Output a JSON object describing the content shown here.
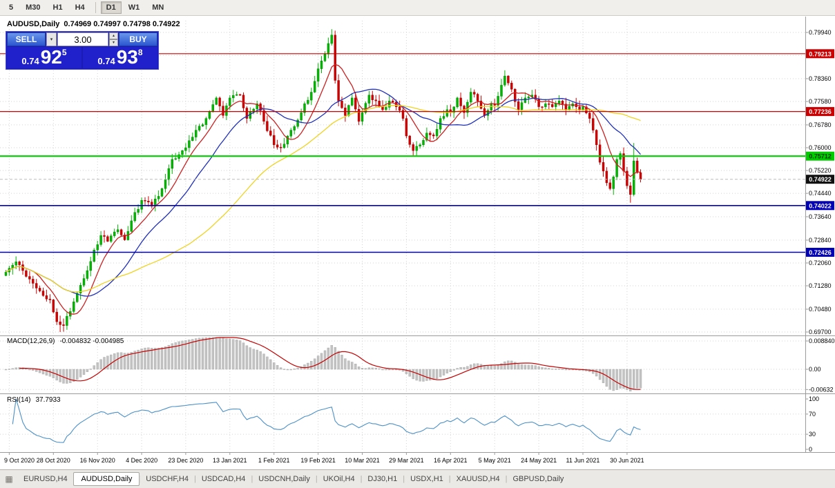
{
  "toolbar": {
    "timeframes": [
      "5",
      "M30",
      "H1",
      "H4",
      "D1",
      "W1",
      "MN"
    ],
    "active": "D1"
  },
  "chart_header": {
    "symbol": "AUDUSD,Daily",
    "ohlc": "0.74969 0.74997 0.74798 0.74922"
  },
  "trade_panel": {
    "sell_label": "SELL",
    "buy_label": "BUY",
    "volume": "3.00",
    "sell_price": {
      "prefix": "0.74",
      "big": "92",
      "sup": "5"
    },
    "buy_price": {
      "prefix": "0.74",
      "big": "93",
      "sup": "8"
    }
  },
  "chart_data": {
    "type": "candlestick",
    "symbol": "AUDUSD",
    "period": "Daily",
    "candle_count": 188,
    "y_axis_labels": [
      "0.79940",
      "0.78360",
      "0.77580",
      "0.76780",
      "0.76000",
      "0.75220",
      "0.74440",
      "0.73640",
      "0.72840",
      "0.72060",
      "0.71280",
      "0.70480",
      "0.69700"
    ],
    "hidden_gridline": 0.7916,
    "levels": [
      {
        "price": 0.79213,
        "label": "0.79213",
        "color": "#cc0000",
        "width": 1.2,
        "tag_fg": "#ffffff"
      },
      {
        "price": 0.77236,
        "label": "0.77236",
        "color": "#cc0000",
        "width": 1.2,
        "tag_fg": "#ffffff"
      },
      {
        "price": 0.75712,
        "label": "0.75712",
        "color": "#00cc00",
        "width": 2.2,
        "tag_fg": "#003300"
      },
      {
        "price": 0.74022,
        "label": "0.74022",
        "color": "#0000b4",
        "width": 1.6,
        "tag_fg": "#ffffff"
      },
      {
        "price": 0.72426,
        "label": "0.72426",
        "color": "#0000b4",
        "width": 1.6,
        "tag_fg": "#ffffff"
      }
    ],
    "current_price": {
      "label": "0.74922",
      "value": 0.74922
    },
    "x_ticks": [
      {
        "i": 1,
        "label": "9 Oct 2020"
      },
      {
        "i": 14,
        "label": "28 Oct 2020"
      },
      {
        "i": 27,
        "label": "16 Nov 2020"
      },
      {
        "i": 40,
        "label": "4 Dec 2020"
      },
      {
        "i": 53,
        "label": "23 Dec 2020"
      },
      {
        "i": 66,
        "label": "13 Jan 2021"
      },
      {
        "i": 79,
        "label": "1 Feb 2021"
      },
      {
        "i": 92,
        "label": "19 Feb 2021"
      },
      {
        "i": 105,
        "label": "10 Mar 2021"
      },
      {
        "i": 118,
        "label": "29 Mar 2021"
      },
      {
        "i": 131,
        "label": "16 Apr 2021"
      },
      {
        "i": 144,
        "label": "5 May 2021"
      },
      {
        "i": 157,
        "label": "24 May 2021"
      },
      {
        "i": 170,
        "label": "11 Jun 2021"
      },
      {
        "i": 183,
        "label": "30 Jun 2021"
      }
    ],
    "waypoints": [
      [
        0,
        0.7175
      ],
      [
        3,
        0.721
      ],
      [
        6,
        0.716
      ],
      [
        9,
        0.712
      ],
      [
        13,
        0.708
      ],
      [
        15,
        0.7005
      ],
      [
        17,
        0.6992
      ],
      [
        19,
        0.704
      ],
      [
        22,
        0.713
      ],
      [
        24,
        0.718
      ],
      [
        26,
        0.725
      ],
      [
        28,
        0.73
      ],
      [
        30,
        0.728
      ],
      [
        33,
        0.732
      ],
      [
        35,
        0.7285
      ],
      [
        37,
        0.735
      ],
      [
        40,
        0.742
      ],
      [
        43,
        0.74
      ],
      [
        46,
        0.746
      ],
      [
        49,
        0.756
      ],
      [
        53,
        0.76
      ],
      [
        56,
        0.766
      ],
      [
        59,
        0.77
      ],
      [
        62,
        0.777
      ],
      [
        64,
        0.771
      ],
      [
        66,
        0.777
      ],
      [
        69,
        0.778
      ],
      [
        71,
        0.77
      ],
      [
        74,
        0.775
      ],
      [
        76,
        0.769
      ],
      [
        79,
        0.761
      ],
      [
        81,
        0.76
      ],
      [
        84,
        0.766
      ],
      [
        87,
        0.772
      ],
      [
        90,
        0.779
      ],
      [
        92,
        0.787
      ],
      [
        94,
        0.792
      ],
      [
        96,
        0.7985
      ],
      [
        97,
        0.783
      ],
      [
        98,
        0.776
      ],
      [
        100,
        0.771
      ],
      [
        102,
        0.777
      ],
      [
        104,
        0.769
      ],
      [
        105,
        0.772
      ],
      [
        107,
        0.778
      ],
      [
        109,
        0.776
      ],
      [
        111,
        0.773
      ],
      [
        113,
        0.776
      ],
      [
        115,
        0.774
      ],
      [
        117,
        0.77
      ],
      [
        118,
        0.764
      ],
      [
        120,
        0.759
      ],
      [
        122,
        0.761
      ],
      [
        124,
        0.765
      ],
      [
        126,
        0.764
      ],
      [
        128,
        0.77
      ],
      [
        130,
        0.773
      ],
      [
        131,
        0.772
      ],
      [
        133,
        0.777
      ],
      [
        135,
        0.772
      ],
      [
        137,
        0.779
      ],
      [
        139,
        0.776
      ],
      [
        141,
        0.771
      ],
      [
        143,
        0.775
      ],
      [
        144,
        0.7745
      ],
      [
        147,
        0.7845
      ],
      [
        149,
        0.78
      ],
      [
        151,
        0.773
      ],
      [
        153,
        0.777
      ],
      [
        155,
        0.778
      ],
      [
        157,
        0.774
      ],
      [
        159,
        0.775
      ],
      [
        161,
        0.774
      ],
      [
        163,
        0.776
      ],
      [
        165,
        0.773
      ],
      [
        167,
        0.775
      ],
      [
        169,
        0.773
      ],
      [
        170,
        0.774
      ],
      [
        172,
        0.77
      ],
      [
        173,
        0.766
      ],
      [
        174,
        0.761
      ],
      [
        175,
        0.755
      ],
      [
        176,
        0.752
      ],
      [
        177,
        0.748
      ],
      [
        178,
        0.746
      ],
      [
        179,
        0.75
      ],
      [
        180,
        0.756
      ],
      [
        181,
        0.758
      ],
      [
        182,
        0.752
      ],
      [
        183,
        0.747
      ],
      [
        184,
        0.744
      ],
      [
        185,
        0.7555
      ],
      [
        186,
        0.7515
      ],
      [
        187,
        0.7492
      ]
    ],
    "spikes": [
      {
        "i": 16,
        "low": 0.697
      },
      {
        "i": 96,
        "high": 0.8005
      },
      {
        "i": 184,
        "low": 0.7412
      },
      {
        "i": 185,
        "high": 0.7616
      }
    ],
    "moving_averages": [
      {
        "period": 8,
        "color": "#cc2020"
      },
      {
        "period": 20,
        "color": "#2030b8"
      },
      {
        "period": 55,
        "color": "#efd321"
      }
    ],
    "colors": {
      "bull": "#00b800",
      "bull_stroke": "#007a00",
      "bear": "#d40000",
      "bear_stroke": "#8e0000",
      "grid": "#d2d2d2"
    },
    "indicators": {
      "macd": {
        "label": "MACD(12,26,9)",
        "values": "-0.004832 -0.004985",
        "fast": 12,
        "slow": 26,
        "signal": 9,
        "y_labels": [
          "0.008840",
          "0.00",
          "-0.00632"
        ],
        "hist_color": "#c3c3c3",
        "hist_stroke": "#a5a5a5",
        "signal_color": "#c40000"
      },
      "rsi": {
        "label": "RSI(14)",
        "value": "37.7933",
        "period": 14,
        "y_labels": [
          "100",
          "70",
          "30",
          "0"
        ],
        "levels": [
          70,
          30
        ],
        "line_color": "#4a90c8"
      }
    }
  },
  "tabs": {
    "items": [
      "EURUSD,H4",
      "AUDUSD,Daily",
      "USDCHF,H4",
      "USDCAD,H4",
      "USDCNH,Daily",
      "UKOil,H4",
      "DJ30,H1",
      "USDX,H1",
      "XAUUSD,H4",
      "GBPUSD,Daily"
    ],
    "active_index": 1
  }
}
